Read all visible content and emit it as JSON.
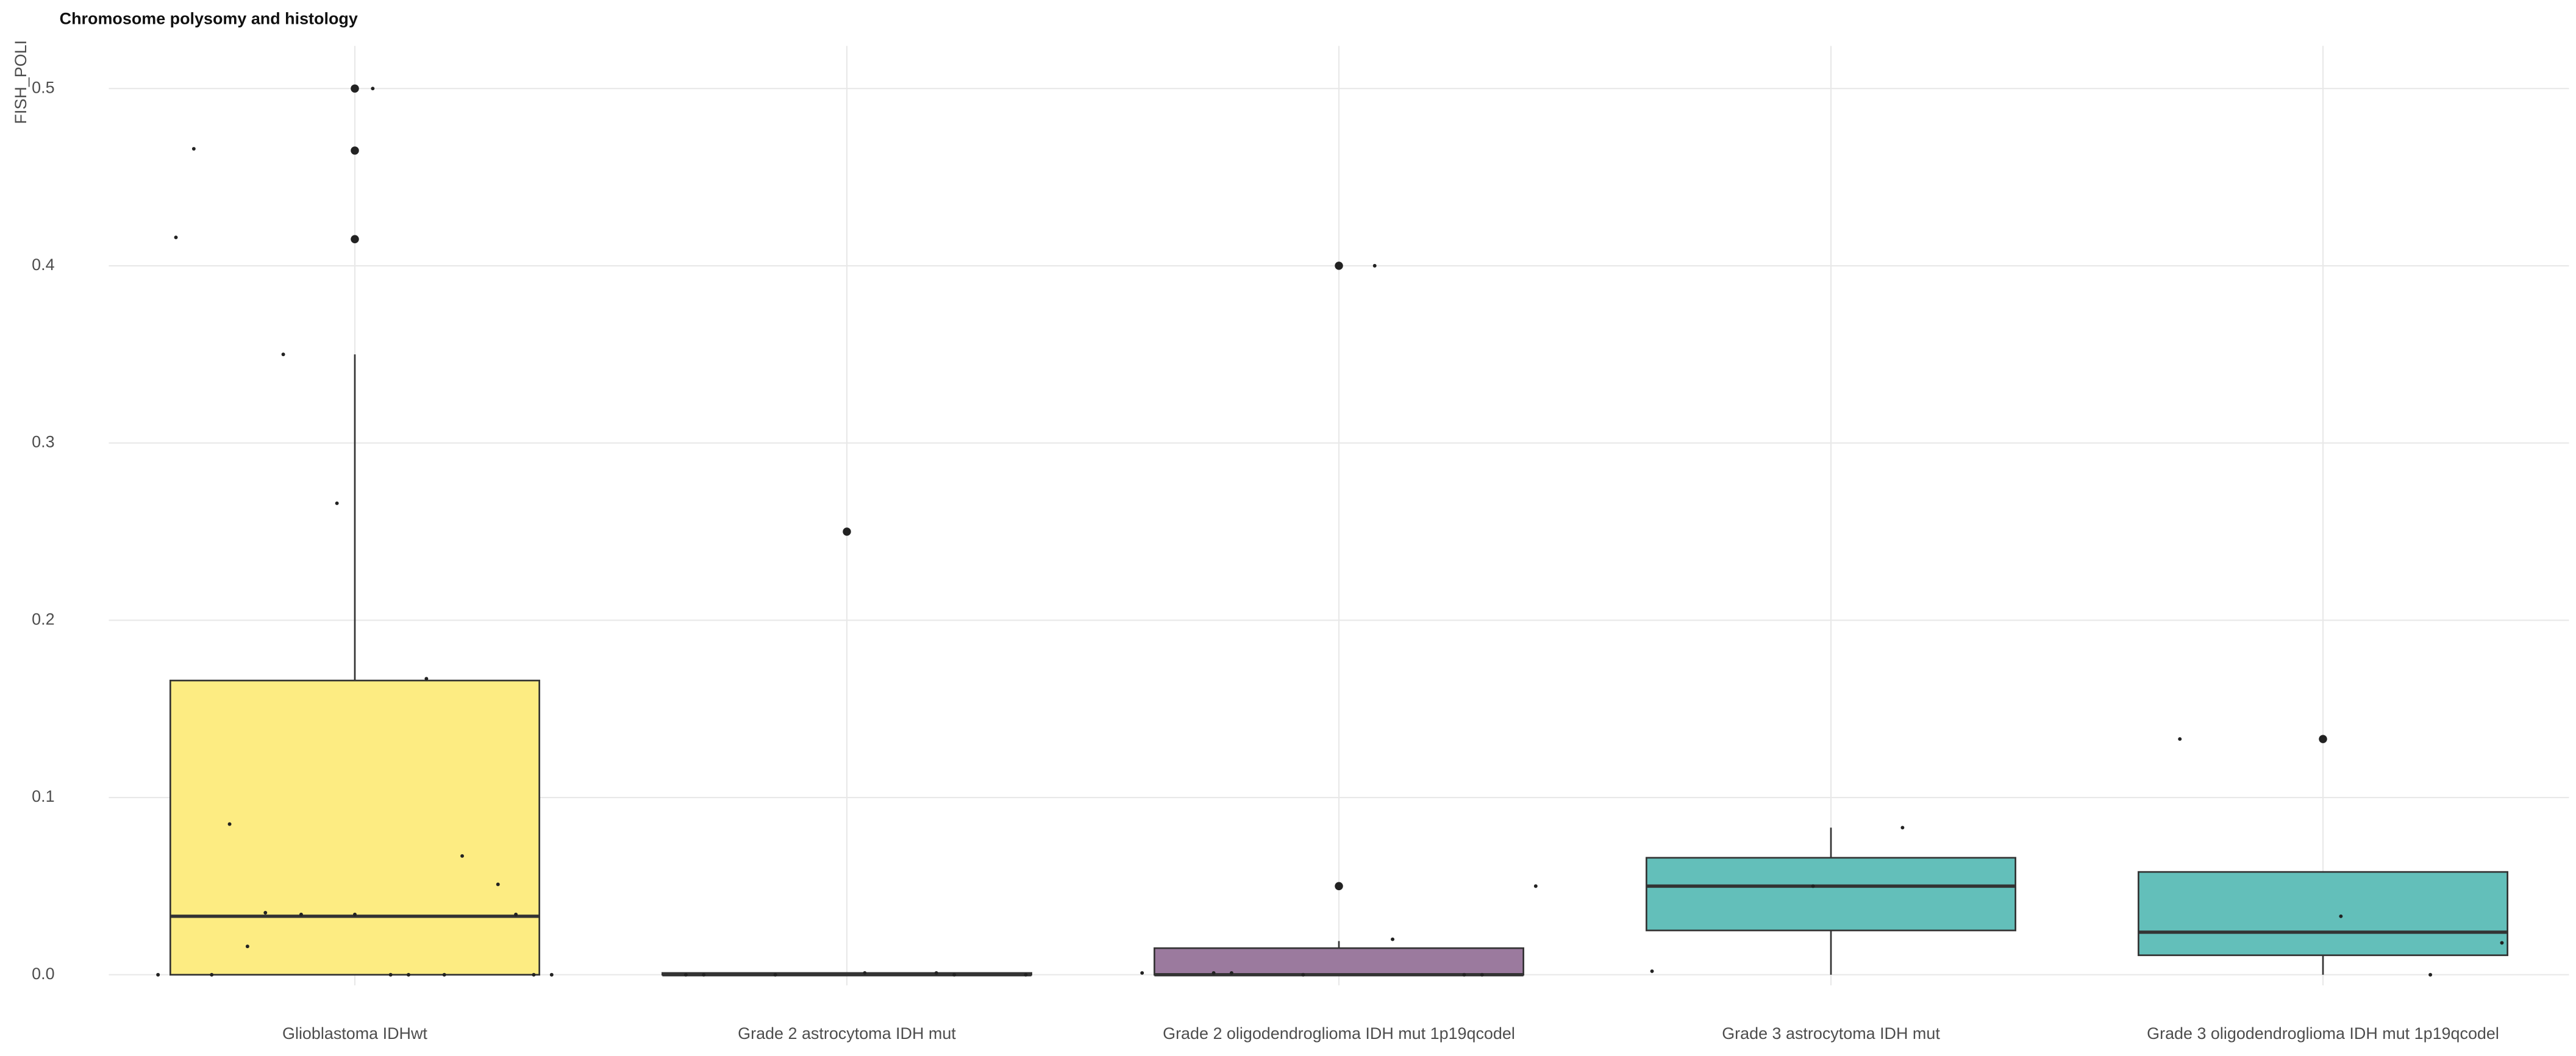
{
  "chart_data": {
    "type": "box",
    "title": "Chromosome polysomy and histology",
    "y_label": "FISH_POLI",
    "categories": [
      "Glioblastoma IDHwt",
      "Grade 2 astrocytoma IDH mut",
      "Grade 2 oligodendroglioma IDH mut 1p19qcodel",
      "Grade 3  astrocytoma IDH mut",
      "Grade 3 oligodendroglioma IDH mut 1p19qcodel"
    ],
    "ylim": [
      -0.006,
      0.524
    ],
    "yticks": [
      {
        "value": 0,
        "label": "0.0"
      },
      {
        "value": 0.1,
        "label": "0.1"
      },
      {
        "value": 0.2,
        "label": "0.2"
      },
      {
        "value": 0.3,
        "label": "0.3"
      },
      {
        "value": 0.4,
        "label": "0.4"
      },
      {
        "value": 0.5,
        "label": "0.5"
      }
    ],
    "grid": true,
    "boxes": [
      {
        "color": "#fdec82",
        "min": 0,
        "q1": 0,
        "median": 0.033,
        "q3": 0.166,
        "max": 0.35,
        "outliers": [
          0.415,
          0.465,
          0.5
        ],
        "points": [
          0,
          0,
          0.016,
          0.051,
          0.266,
          0.416,
          0.167,
          0.035,
          0.034,
          0.034,
          0.466,
          0,
          0.35,
          0,
          0.5,
          0,
          0.067,
          0.034,
          0,
          0,
          0.085
        ]
      },
      {
        "color": "#fdec82",
        "min": 0,
        "q1": 0,
        "median": 0,
        "q3": 0.001,
        "max": 0.001,
        "outliers": [
          0.25
        ],
        "points": [
          0.25,
          0,
          0.001,
          0,
          0,
          0.001,
          0,
          0
        ]
      },
      {
        "color": "#9b7a9e",
        "min": 0,
        "q1": 0,
        "median": 0,
        "q3": 0.015,
        "max": 0.019,
        "outliers": [
          0.05,
          0.4
        ],
        "points": [
          0.05,
          0.4,
          0.001,
          0,
          0,
          0.001,
          0.02,
          0.001,
          0
        ]
      },
      {
        "color": "#63bfba",
        "min": 0,
        "q1": 0.025,
        "median": 0.05,
        "q3": 0.066,
        "max": 0.083,
        "outliers": [],
        "points": [
          0.05,
          0.002,
          0.083
        ]
      },
      {
        "color": "#63bfba",
        "min": 0,
        "q1": 0.011,
        "median": 0.024,
        "q3": 0.058,
        "max": 0.058,
        "outliers": [
          0.133
        ],
        "points": [
          0.018,
          0.033,
          0.133,
          0
        ]
      }
    ]
  }
}
